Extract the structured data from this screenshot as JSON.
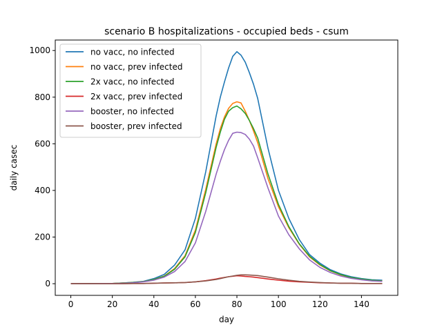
{
  "chart_data": {
    "type": "line",
    "title": "scenario B hospitalizations - occupied beds - csum",
    "xlabel": "day",
    "ylabel": "daily casec",
    "xlim": [
      -7.5,
      157.5
    ],
    "ylim": [
      -50,
      1045
    ],
    "xticks": [
      0,
      20,
      40,
      60,
      80,
      100,
      120,
      140
    ],
    "yticks": [
      0,
      200,
      400,
      600,
      800,
      1000
    ],
    "legend_position": "upper-left",
    "x": [
      0,
      5,
      10,
      15,
      20,
      25,
      30,
      35,
      40,
      45,
      50,
      55,
      60,
      65,
      70,
      72,
      74,
      76,
      78,
      80,
      82,
      84,
      86,
      88,
      90,
      95,
      100,
      105,
      110,
      115,
      120,
      125,
      130,
      135,
      140,
      145,
      150
    ],
    "series": [
      {
        "name": "no vacc, no infected",
        "color": "#1f77b4",
        "values": [
          0,
          0,
          1,
          1,
          1,
          3,
          6,
          10,
          22,
          40,
          80,
          145,
          280,
          480,
          720,
          800,
          865,
          925,
          975,
          995,
          980,
          950,
          905,
          855,
          795,
          580,
          400,
          280,
          190,
          125,
          88,
          60,
          42,
          30,
          22,
          17,
          15
        ]
      },
      {
        "name": "no vacc, prev infected",
        "color": "#ff7f0e",
        "values": [
          0,
          0,
          1,
          1,
          1,
          3,
          5,
          9,
          18,
          33,
          65,
          120,
          230,
          405,
          600,
          665,
          715,
          752,
          773,
          780,
          775,
          740,
          700,
          655,
          605,
          450,
          330,
          240,
          170,
          115,
          80,
          55,
          38,
          26,
          19,
          14,
          12
        ]
      },
      {
        "name": "2x vacc, no infected",
        "color": "#2ca02c",
        "values": [
          0,
          0,
          1,
          1,
          1,
          3,
          5,
          9,
          18,
          32,
          62,
          115,
          220,
          390,
          585,
          650,
          705,
          740,
          755,
          762,
          750,
          730,
          700,
          665,
          625,
          470,
          340,
          245,
          172,
          118,
          82,
          56,
          39,
          27,
          20,
          15,
          12
        ]
      },
      {
        "name": "2x vacc, prev infected",
        "color": "#d62728",
        "values": [
          0,
          0,
          0,
          0,
          0,
          0,
          1,
          1,
          2,
          3,
          4,
          5,
          8,
          13,
          20,
          24,
          27,
          30,
          32,
          34,
          33,
          31,
          30,
          28,
          26,
          20,
          15,
          11,
          8,
          6,
          4,
          3,
          2,
          2,
          1,
          1,
          1
        ]
      },
      {
        "name": "booster, no infected",
        "color": "#9467bd",
        "values": [
          0,
          0,
          0,
          1,
          1,
          2,
          4,
          8,
          15,
          28,
          52,
          95,
          175,
          310,
          470,
          525,
          575,
          615,
          645,
          650,
          648,
          640,
          620,
          590,
          540,
          410,
          290,
          210,
          150,
          102,
          70,
          48,
          33,
          23,
          17,
          12,
          10
        ]
      },
      {
        "name": "booster, prev infected",
        "color": "#8c564b",
        "values": [
          0,
          0,
          0,
          0,
          0,
          0,
          1,
          1,
          2,
          3,
          4,
          5,
          8,
          12,
          18,
          22,
          26,
          30,
          33,
          36,
          38,
          38,
          37,
          36,
          35,
          28,
          21,
          15,
          10,
          7,
          5,
          3,
          2,
          2,
          1,
          1,
          1
        ]
      }
    ]
  }
}
